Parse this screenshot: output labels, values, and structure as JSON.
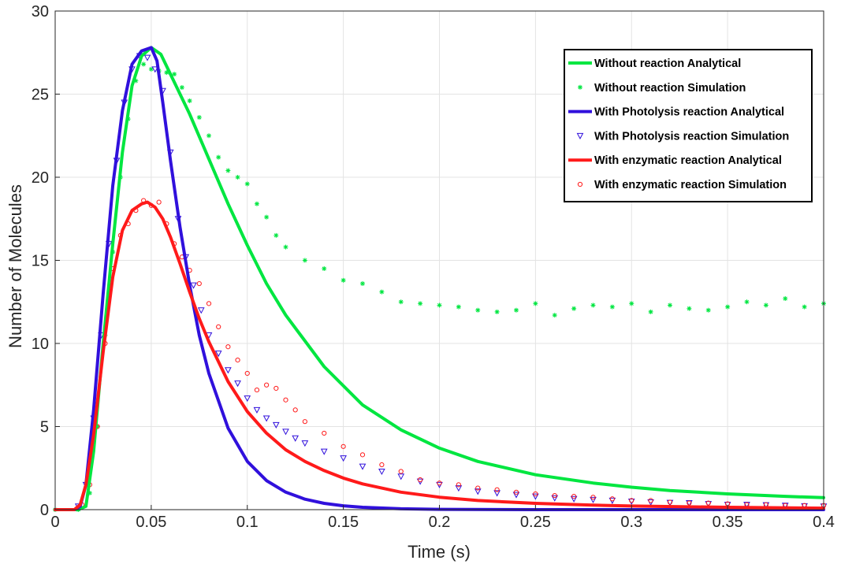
{
  "chart_data": {
    "type": "line",
    "title": "",
    "xlabel": "Time (s)",
    "ylabel": "Number of Molecules",
    "xlim": [
      0,
      0.4
    ],
    "ylim": [
      0,
      30
    ],
    "xticks": [
      0,
      0.05,
      0.1,
      0.15,
      0.2,
      0.25,
      0.3,
      0.35,
      0.4
    ],
    "xtick_labels": [
      "0",
      "0.05",
      "0.1",
      "0.15",
      "0.2",
      "0.25",
      "0.3",
      "0.35",
      "0.4"
    ],
    "yticks": [
      0,
      5,
      10,
      15,
      20,
      25,
      30
    ],
    "ytick_labels": [
      "0",
      "5",
      "10",
      "15",
      "20",
      "25",
      "30"
    ],
    "grid": true,
    "legend_position": "top-right",
    "series": [
      {
        "name": "Without reaction Analytical",
        "kind": "line",
        "color": "#00e640",
        "x": [
          0,
          0.012,
          0.016,
          0.02,
          0.025,
          0.03,
          0.035,
          0.04,
          0.045,
          0.05,
          0.055,
          0.06,
          0.07,
          0.08,
          0.09,
          0.1,
          0.11,
          0.12,
          0.14,
          0.16,
          0.18,
          0.2,
          0.22,
          0.25,
          0.28,
          0.3,
          0.32,
          0.35,
          0.38,
          0.4
        ],
        "y": [
          0,
          0,
          0.2,
          3.5,
          10,
          16,
          21.5,
          25.5,
          27.3,
          27.8,
          27.4,
          26.2,
          23.8,
          21.1,
          18.4,
          15.9,
          13.6,
          11.7,
          8.6,
          6.3,
          4.8,
          3.7,
          2.9,
          2.1,
          1.6,
          1.35,
          1.15,
          0.95,
          0.8,
          0.72
        ]
      },
      {
        "name": "Without reaction Simulation",
        "kind": "markers",
        "marker": "star",
        "color": "#00e640",
        "x": [
          0,
          0.012,
          0.018,
          0.022,
          0.026,
          0.03,
          0.034,
          0.038,
          0.042,
          0.046,
          0.05,
          0.054,
          0.058,
          0.062,
          0.066,
          0.07,
          0.075,
          0.08,
          0.085,
          0.09,
          0.095,
          0.1,
          0.105,
          0.11,
          0.115,
          0.12,
          0.13,
          0.14,
          0.15,
          0.16,
          0.17,
          0.18,
          0.19,
          0.2,
          0.21,
          0.22,
          0.23,
          0.24,
          0.25,
          0.26,
          0.27,
          0.28,
          0.29,
          0.3,
          0.31,
          0.32,
          0.33,
          0.34,
          0.35,
          0.36,
          0.37,
          0.38,
          0.39,
          0.4
        ],
        "y": [
          0,
          0,
          1,
          5,
          10.5,
          15.5,
          20,
          23.5,
          25.8,
          26.8,
          26.5,
          26.4,
          26.3,
          26.2,
          25.4,
          24.6,
          23.6,
          22.5,
          21.2,
          20.4,
          20,
          19.6,
          18.4,
          17.6,
          16.5,
          15.8,
          15,
          14.5,
          13.8,
          13.6,
          13.1,
          12.5,
          12.4,
          12.3,
          12.2,
          12,
          11.9,
          12,
          12.4,
          11.7,
          12.1,
          12.3,
          12.2,
          12.4,
          11.9,
          12.3,
          12.1,
          12,
          12.2,
          12.5,
          12.3,
          12.7,
          12.2,
          12.4
        ]
      },
      {
        "name": "With Photolysis reaction Analytical",
        "kind": "line",
        "color": "#3010dc",
        "x": [
          0,
          0.01,
          0.013,
          0.016,
          0.02,
          0.025,
          0.03,
          0.035,
          0.04,
          0.045,
          0.05,
          0.053,
          0.056,
          0.06,
          0.065,
          0.07,
          0.075,
          0.08,
          0.09,
          0.1,
          0.11,
          0.12,
          0.13,
          0.14,
          0.15,
          0.16,
          0.18,
          0.2,
          0.25,
          0.3,
          0.35,
          0.4
        ],
        "y": [
          0,
          0,
          0.2,
          1.5,
          6,
          13,
          19.5,
          24,
          26.8,
          27.6,
          27.8,
          27,
          24.5,
          21,
          17,
          13.5,
          10.5,
          8.2,
          4.9,
          2.9,
          1.75,
          1.05,
          0.63,
          0.38,
          0.23,
          0.14,
          0.05,
          0.02,
          0,
          0,
          0,
          0
        ]
      },
      {
        "name": "With Photolysis reaction Simulation",
        "kind": "markers",
        "marker": "triangle-down",
        "color": "#3010dc",
        "x": [
          0.012,
          0.016,
          0.02,
          0.024,
          0.028,
          0.032,
          0.036,
          0.04,
          0.044,
          0.048,
          0.052,
          0.056,
          0.06,
          0.064,
          0.068,
          0.072,
          0.076,
          0.08,
          0.085,
          0.09,
          0.095,
          0.1,
          0.105,
          0.11,
          0.115,
          0.12,
          0.125,
          0.13,
          0.14,
          0.15,
          0.16,
          0.17,
          0.18,
          0.19,
          0.2,
          0.21,
          0.22,
          0.23,
          0.24,
          0.25,
          0.26,
          0.27,
          0.28,
          0.29,
          0.3,
          0.31,
          0.32,
          0.33,
          0.34,
          0.35,
          0.36,
          0.37,
          0.38,
          0.39,
          0.4
        ],
        "y": [
          0.2,
          1.5,
          5.5,
          10.5,
          16,
          21,
          24.5,
          26.5,
          27.3,
          27.2,
          26.5,
          25.2,
          21.5,
          17.5,
          15.2,
          13.5,
          12,
          10.5,
          9.4,
          8.4,
          7.6,
          6.7,
          6,
          5.5,
          5.1,
          4.7,
          4.3,
          4,
          3.5,
          3.1,
          2.6,
          2.3,
          2.0,
          1.7,
          1.5,
          1.3,
          1.1,
          1.0,
          0.9,
          0.8,
          0.7,
          0.65,
          0.6,
          0.55,
          0.5,
          0.45,
          0.42,
          0.4,
          0.35,
          0.3,
          0.3,
          0.28,
          0.25,
          0.22,
          0.2
        ]
      },
      {
        "name": "With enzymatic reaction Analytical",
        "kind": "line",
        "color": "#ff1a1a",
        "x": [
          0,
          0.01,
          0.013,
          0.016,
          0.02,
          0.025,
          0.03,
          0.035,
          0.04,
          0.045,
          0.048,
          0.052,
          0.056,
          0.06,
          0.065,
          0.07,
          0.075,
          0.08,
          0.09,
          0.1,
          0.11,
          0.12,
          0.13,
          0.14,
          0.15,
          0.16,
          0.18,
          0.2,
          0.22,
          0.25,
          0.28,
          0.3,
          0.35,
          0.4
        ],
        "y": [
          0,
          0,
          0.3,
          1.5,
          4.5,
          9.5,
          14,
          16.8,
          18,
          18.4,
          18.5,
          18.2,
          17.5,
          16.4,
          14.8,
          13.1,
          11.5,
          10.1,
          7.7,
          5.9,
          4.6,
          3.6,
          2.9,
          2.35,
          1.9,
          1.55,
          1.05,
          0.75,
          0.55,
          0.38,
          0.27,
          0.22,
          0.14,
          0.09
        ]
      },
      {
        "name": "With enzymatic reaction Simulation",
        "kind": "markers",
        "marker": "circle",
        "color": "#ff1a1a",
        "x": [
          0.014,
          0.018,
          0.022,
          0.026,
          0.03,
          0.034,
          0.038,
          0.042,
          0.046,
          0.05,
          0.054,
          0.058,
          0.062,
          0.066,
          0.07,
          0.075,
          0.08,
          0.085,
          0.09,
          0.095,
          0.1,
          0.105,
          0.11,
          0.115,
          0.12,
          0.125,
          0.13,
          0.14,
          0.15,
          0.16,
          0.17,
          0.18,
          0.19,
          0.2,
          0.21,
          0.22,
          0.23,
          0.24,
          0.25,
          0.26,
          0.27,
          0.28,
          0.29,
          0.3,
          0.31,
          0.32,
          0.33,
          0.34,
          0.35,
          0.36,
          0.37,
          0.38,
          0.39,
          0.4
        ],
        "y": [
          0.3,
          1.5,
          5,
          10,
          14.5,
          16.5,
          17.2,
          18,
          18.6,
          18.3,
          18.5,
          17.2,
          16,
          15.2,
          14.4,
          13.6,
          12.4,
          11,
          9.8,
          9,
          8.2,
          7.2,
          7.5,
          7.3,
          6.6,
          6,
          5.3,
          4.6,
          3.8,
          3.3,
          2.7,
          2.3,
          1.8,
          1.6,
          1.5,
          1.3,
          1.2,
          1.05,
          0.95,
          0.85,
          0.8,
          0.75,
          0.65,
          0.55,
          0.55,
          0.45,
          0.4,
          0.4,
          0.35,
          0.3,
          0.3,
          0.25,
          0.25,
          0.25
        ]
      }
    ]
  }
}
